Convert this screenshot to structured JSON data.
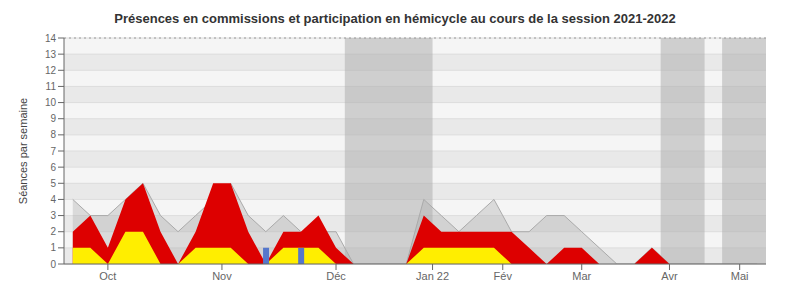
{
  "chart_data": {
    "type": "area",
    "title": "Présences en commissions et participation en hémicycle au cours de la session 2021-2022",
    "ylabel": "Séances par semaine",
    "x": [
      0,
      1,
      2,
      3,
      4,
      5,
      6,
      7,
      8,
      9,
      10,
      11,
      12,
      13,
      14,
      15,
      16,
      17,
      18,
      19,
      20,
      21,
      22,
      23,
      24,
      25,
      26,
      27,
      28,
      29,
      30,
      31,
      32,
      33,
      34,
      35,
      36,
      37,
      38,
      39
    ],
    "xlim": [
      -0.5,
      39.5
    ],
    "xticks": [
      {
        "value": 2.0,
        "label": "Oct"
      },
      {
        "value": 8.5,
        "label": "Nov"
      },
      {
        "value": 15.0,
        "label": "Déc"
      },
      {
        "value": 20.5,
        "label": "Jan 22"
      },
      {
        "value": 24.5,
        "label": "Fév"
      },
      {
        "value": 29.0,
        "label": "Mar"
      },
      {
        "value": 34.0,
        "label": "Avr"
      },
      {
        "value": 38.0,
        "label": "Mai"
      }
    ],
    "ylim": [
      0,
      14
    ],
    "yticks": [
      0,
      1,
      2,
      3,
      4,
      5,
      6,
      7,
      8,
      9,
      10,
      11,
      12,
      13,
      14
    ],
    "grid": true,
    "series": [
      {
        "type": "area",
        "color": "#aaaaaa",
        "line_style": "solid",
        "values": [
          4,
          3,
          3,
          4,
          5,
          3,
          2,
          3,
          4,
          5,
          3,
          2,
          3,
          2,
          2,
          2,
          0,
          0,
          0,
          0,
          4,
          3,
          2,
          3,
          4,
          2,
          2,
          3,
          3,
          2,
          1,
          0,
          0,
          1,
          0,
          0,
          0,
          0,
          0,
          0
        ]
      },
      {
        "type": "area",
        "color": "#dd0000",
        "values": [
          2,
          3,
          1,
          4,
          5,
          2,
          0,
          2,
          5,
          5,
          2,
          0,
          2,
          2,
          3,
          1,
          0,
          0,
          0,
          0,
          3,
          2,
          2,
          2,
          2,
          2,
          1,
          0,
          1,
          1,
          0,
          0,
          0,
          1,
          0,
          0,
          0,
          0,
          0,
          0
        ]
      },
      {
        "type": "area",
        "color": "#ffee00",
        "values": [
          1,
          1,
          0,
          2,
          2,
          0,
          0,
          1,
          1,
          1,
          0,
          0,
          1,
          1,
          1,
          0,
          0,
          0,
          0,
          0,
          1,
          1,
          1,
          1,
          1,
          0,
          0,
          0,
          0,
          0,
          0,
          0,
          0,
          0,
          0,
          0,
          0,
          0,
          0,
          0
        ]
      },
      {
        "type": "bar",
        "color": "#5577cc",
        "x": [
          11,
          13
        ],
        "values": [
          1,
          1
        ]
      }
    ],
    "holiday_spans": [
      [
        15.5,
        20.5
      ],
      [
        33.5,
        36.0
      ],
      [
        37.0,
        39.5
      ]
    ],
    "holiday_color": "#aaaaaa",
    "reference_line": {
      "y": 14,
      "line_style": "dotted"
    }
  }
}
